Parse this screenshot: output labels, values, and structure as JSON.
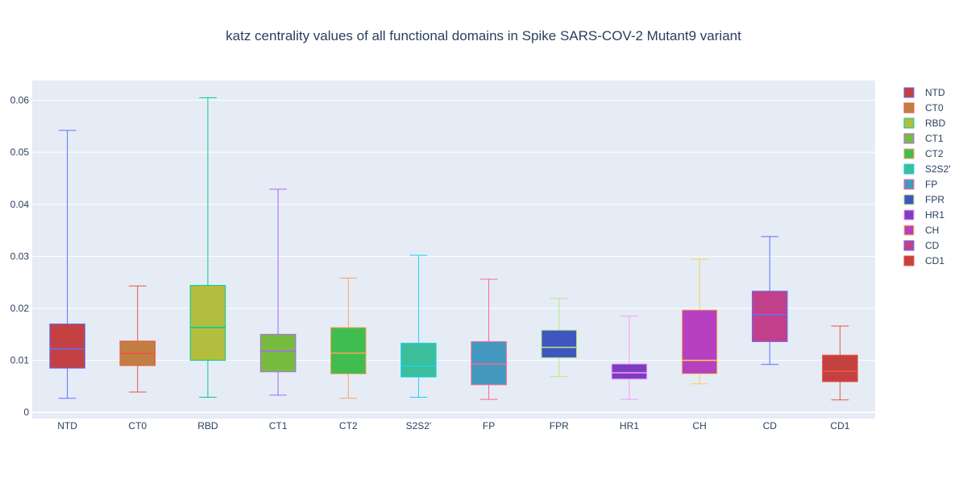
{
  "chart_data": {
    "type": "box",
    "title": "katz centrality values of all functional domains in Spike SARS-COV-2 Mutant9 variant",
    "xlabel": "",
    "ylabel": "",
    "ylim": [
      -0.0012,
      0.0638
    ],
    "yticks": [
      0,
      0.01,
      0.02,
      0.03,
      0.04,
      0.05,
      0.06
    ],
    "ytick_labels": [
      "0",
      "0.01",
      "0.02",
      "0.03",
      "0.04",
      "0.05",
      "0.06"
    ],
    "grid": true,
    "legend_position": "right",
    "categories": [
      "NTD",
      "CT0",
      "RBD",
      "CT1",
      "CT2",
      "S2S2'",
      "FP",
      "FPR",
      "HR1",
      "CH",
      "CD",
      "CD1"
    ],
    "series": [
      {
        "name": "NTD",
        "min": 0.0027,
        "q1": 0.0085,
        "median": 0.0122,
        "q3": 0.017,
        "max": 0.0542,
        "fill": "#c34143",
        "line": "#636efa"
      },
      {
        "name": "CT0",
        "min": 0.0039,
        "q1": 0.009,
        "median": 0.0113,
        "q3": 0.0137,
        "max": 0.0243,
        "fill": "#c27f43",
        "line": "#ef553b"
      },
      {
        "name": "RBD",
        "min": 0.0029,
        "q1": 0.01,
        "median": 0.0163,
        "q3": 0.0244,
        "max": 0.0605,
        "fill": "#b3be3f",
        "line": "#00cc96"
      },
      {
        "name": "CT1",
        "min": 0.0033,
        "q1": 0.0078,
        "median": 0.0118,
        "q3": 0.015,
        "max": 0.0429,
        "fill": "#77bc3f",
        "line": "#ab63fa"
      },
      {
        "name": "CT2",
        "min": 0.0027,
        "q1": 0.0074,
        "median": 0.0114,
        "q3": 0.0163,
        "max": 0.0258,
        "fill": "#40bd4f",
        "line": "#ffa15a"
      },
      {
        "name": "S2S2'",
        "min": 0.0029,
        "q1": 0.0068,
        "median": 0.0089,
        "q3": 0.0133,
        "max": 0.0302,
        "fill": "#3cbe9a",
        "line": "#19d3f3"
      },
      {
        "name": "FP",
        "min": 0.0025,
        "q1": 0.0053,
        "median": 0.0093,
        "q3": 0.0136,
        "max": 0.0256,
        "fill": "#4399bf",
        "line": "#ff6692"
      },
      {
        "name": "FPR",
        "min": 0.0069,
        "q1": 0.0105,
        "median": 0.0125,
        "q3": 0.0158,
        "max": 0.0219,
        "fill": "#3e56be",
        "line": "#b6e880"
      },
      {
        "name": "HR1",
        "min": 0.0025,
        "q1": 0.0064,
        "median": 0.0076,
        "q3": 0.0093,
        "max": 0.0185,
        "fill": "#7c3ec1",
        "line": "#ff97ff"
      },
      {
        "name": "CH",
        "min": 0.0055,
        "q1": 0.0074,
        "median": 0.01,
        "q3": 0.0197,
        "max": 0.0294,
        "fill": "#b740c1",
        "line": "#fecb52"
      },
      {
        "name": "CD",
        "min": 0.0092,
        "q1": 0.0136,
        "median": 0.0188,
        "q3": 0.0233,
        "max": 0.0338,
        "fill": "#c2408a",
        "line": "#636efa"
      },
      {
        "name": "CD1",
        "min": 0.0024,
        "q1": 0.0059,
        "median": 0.0079,
        "q3": 0.011,
        "max": 0.0166,
        "fill": "#c34141",
        "line": "#ef553b"
      }
    ]
  }
}
